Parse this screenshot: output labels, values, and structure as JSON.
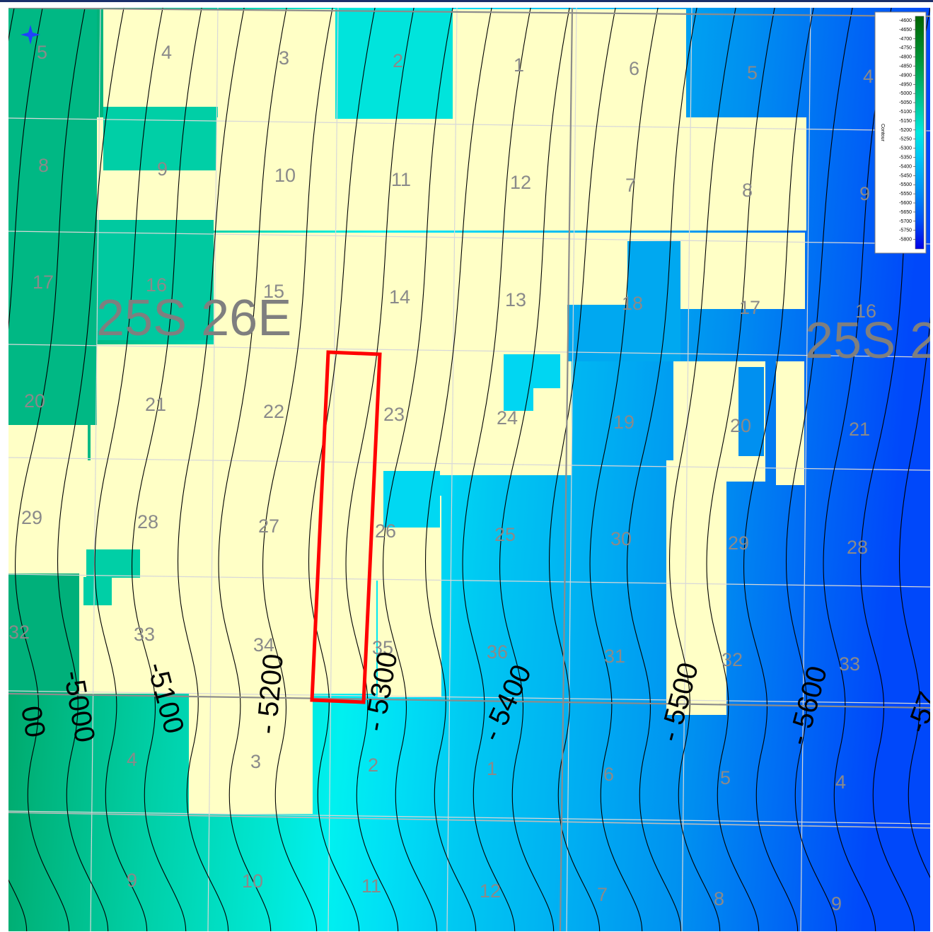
{
  "colors": {
    "lease": "#ffffc6",
    "highlight": "#ff0000",
    "grid_major": "#8c8c8c",
    "grid_minor": "#d8d8d8",
    "contour": "#000000",
    "label": "#8a8a8a"
  },
  "map": {
    "townships": [
      {
        "label": "25S 26E"
      },
      {
        "label": "25S 2"
      }
    ],
    "sections": [
      "5",
      "4",
      "3",
      "2",
      "1",
      "6",
      "5",
      "4",
      "8",
      "9",
      "10",
      "11",
      "12",
      "7",
      "8",
      "9",
      "17",
      "16",
      "15",
      "14",
      "13",
      "18",
      "17",
      "16",
      "20",
      "21",
      "22",
      "23",
      "24",
      "19",
      "20",
      "21",
      "29",
      "28",
      "27",
      "26",
      "25",
      "30",
      "29",
      "28",
      "32",
      "33",
      "34",
      "35",
      "36",
      "31",
      "32",
      "33",
      "4",
      "3",
      "2",
      "1",
      "6",
      "5",
      "4",
      "9",
      "10",
      "11",
      "12",
      "7",
      "8",
      "9"
    ],
    "contour_labels": [
      "-5000",
      "-5100",
      "- 5200",
      "- 5300",
      "- 5400",
      "- 5500",
      "- 5600",
      "-57",
      "00"
    ],
    "north_arrow": "compass-icon"
  },
  "legend": {
    "title": "Contour",
    "ticks": [
      "-4600",
      "-4650",
      "-4700",
      "-4750",
      "-4800",
      "-4850",
      "-4900",
      "-4950",
      "-5000",
      "-5050",
      "-5100",
      "-5150",
      "-5200",
      "-5250",
      "-5300",
      "-5350",
      "-5400",
      "-5450",
      "-5500",
      "-5550",
      "-5600",
      "-5650",
      "-5700",
      "-5750",
      "-5800"
    ]
  }
}
